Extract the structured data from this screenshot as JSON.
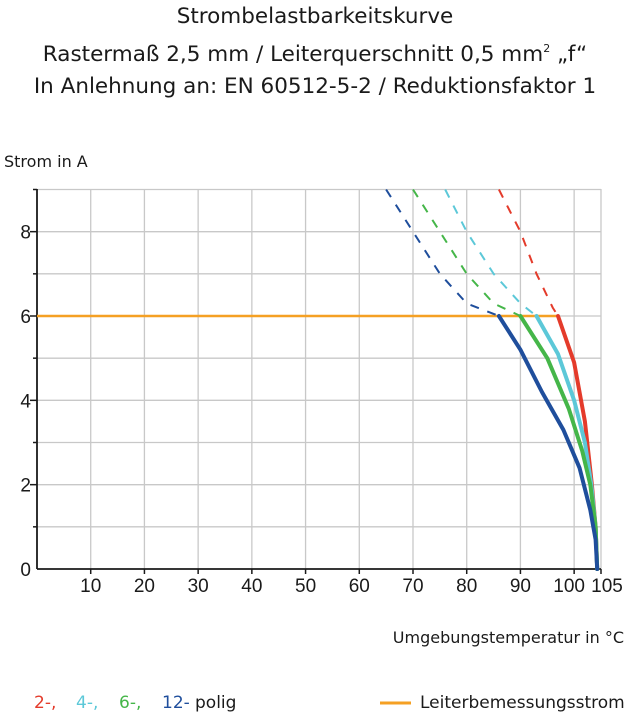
{
  "header": {
    "title": "Strombelastbarkeitskurve",
    "subtitle_prefix": "Rastermaß 2,5 mm / Leiterquerschnitt 0,5 mm",
    "subtitle_sup": "2",
    "subtitle_suffix": " „f“",
    "subtitle2": "In Anlehnung an: EN 60512-5-2 / Reduktionsfaktor 1"
  },
  "colors": {
    "red": "#e43b2b",
    "cyan": "#5cc8d8",
    "green": "#45b649",
    "blue": "#1f4e9c",
    "orange": "#f5a023",
    "grid": "#c8c8c8"
  },
  "chart_data": {
    "type": "line",
    "ylabel": "Strom in A",
    "xlabel": "Umgebungstemperatur in °C",
    "xlim": [
      0,
      105
    ],
    "ylim": [
      0,
      9
    ],
    "x_ticks": [
      10,
      20,
      30,
      40,
      50,
      60,
      70,
      80,
      90,
      100,
      105
    ],
    "y_ticks": [
      0,
      2,
      4,
      6,
      8
    ],
    "rated_current": {
      "name": "Leiterbemessungsstrom",
      "value": 6
    },
    "series": [
      {
        "name": "2-",
        "color": "red",
        "solid": [
          [
            97,
            6
          ],
          [
            100,
            4.9
          ],
          [
            102,
            3.5
          ],
          [
            103.3,
            2
          ],
          [
            104,
            1
          ],
          [
            104.3,
            0
          ]
        ],
        "dashed": [
          [
            86,
            9
          ],
          [
            90,
            8
          ],
          [
            93,
            7
          ],
          [
            96,
            6.2
          ],
          [
            97,
            6
          ]
        ]
      },
      {
        "name": "4-",
        "color": "cyan",
        "solid": [
          [
            93,
            6
          ],
          [
            97,
            5.1
          ],
          [
            100,
            4
          ],
          [
            102,
            3
          ],
          [
            103.2,
            2
          ],
          [
            104,
            1
          ],
          [
            104.3,
            0
          ]
        ],
        "dashed": [
          [
            76,
            9
          ],
          [
            80,
            8
          ],
          [
            85,
            7
          ],
          [
            90,
            6.3
          ],
          [
            93,
            6
          ]
        ]
      },
      {
        "name": "6-",
        "color": "green",
        "solid": [
          [
            90,
            6
          ],
          [
            95,
            5
          ],
          [
            99,
            3.8
          ],
          [
            101.5,
            2.8
          ],
          [
            103,
            2
          ],
          [
            104,
            1
          ],
          [
            104.3,
            0
          ]
        ],
        "dashed": [
          [
            70,
            9
          ],
          [
            75,
            8
          ],
          [
            80,
            7
          ],
          [
            85,
            6.3
          ],
          [
            90,
            6
          ]
        ]
      },
      {
        "name": "12-",
        "color": "blue",
        "solid": [
          [
            86,
            6
          ],
          [
            90,
            5.2
          ],
          [
            94,
            4.2
          ],
          [
            98,
            3.3
          ],
          [
            101,
            2.4
          ],
          [
            103,
            1.4
          ],
          [
            104,
            0.7
          ],
          [
            104.3,
            0
          ]
        ],
        "dashed": [
          [
            65,
            9
          ],
          [
            70,
            8
          ],
          [
            75,
            7
          ],
          [
            80,
            6.3
          ],
          [
            86,
            6
          ]
        ]
      }
    ]
  },
  "legend": {
    "series_labels": [
      "2-,",
      "4-,",
      "6-,",
      "12-"
    ],
    "suffix": "polig",
    "line_label": "Leiterbemessungsstrom"
  }
}
